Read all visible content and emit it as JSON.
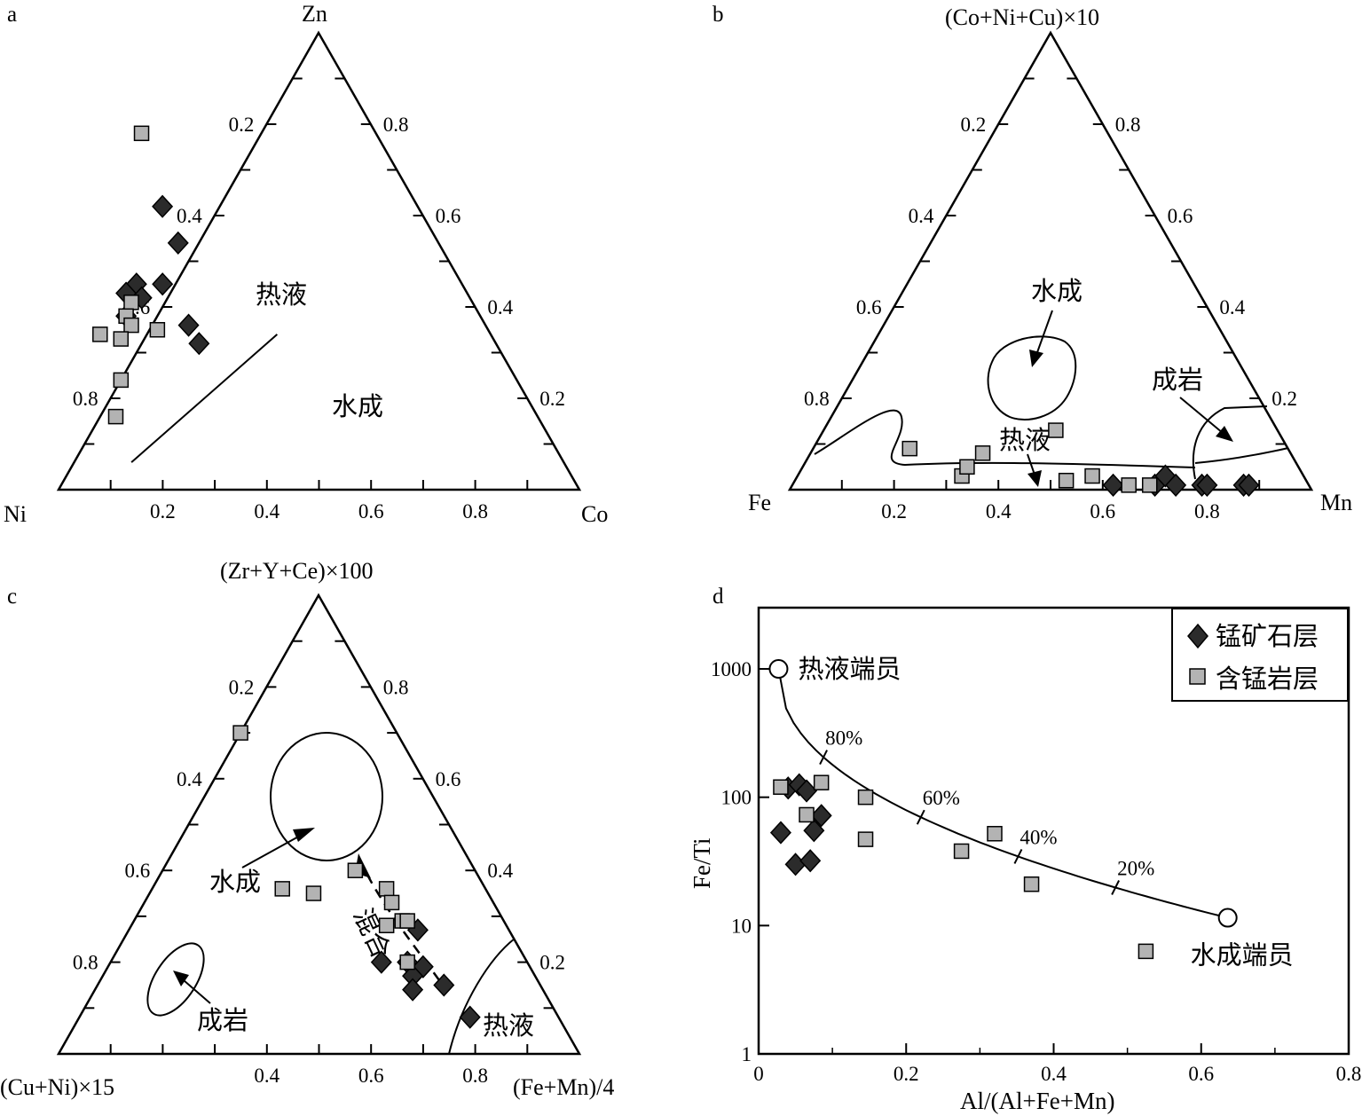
{
  "figure": {
    "panels": [
      {
        "id": "a",
        "label": "a"
      },
      {
        "id": "b",
        "label": "b"
      },
      {
        "id": "c",
        "label": "c"
      },
      {
        "id": "d",
        "label": "d"
      }
    ]
  },
  "colors": {
    "diamond_fill": "#2b2b2b",
    "square_fill": "#b3b3b3",
    "stroke": "#000000",
    "background": "#ffffff"
  },
  "chart_data": [
    {
      "id": "a",
      "type": "scatter",
      "subtype": "ternary",
      "vertex_labels": {
        "top": "Zn",
        "left": "Ni",
        "right": "Co"
      },
      "tick_values": [
        "0.2",
        "0.4",
        "0.6",
        "0.8"
      ],
      "left_edge_ticks": [
        "0.2",
        "0.4",
        "0.6",
        "0.8"
      ],
      "right_edge_ticks": [
        "0.8",
        "0.6",
        "0.4",
        "0.2"
      ],
      "bottom_edge_ticks": [
        "0.2",
        "0.4",
        "0.6",
        "0.8"
      ],
      "region_labels": [
        "热液",
        "水成"
      ],
      "boundary": [
        [
          0.14,
          0.06
        ],
        [
          0.42,
          0.34
        ]
      ],
      "series": [
        {
          "marker": "diamond",
          "points": [
            [
              0.2,
              0.62
            ],
            [
              0.23,
              0.54
            ],
            [
              0.2,
              0.45
            ],
            [
              0.15,
              0.45
            ],
            [
              0.16,
              0.42
            ],
            [
              0.13,
              0.43
            ],
            [
              0.13,
              0.38
            ],
            [
              0.27,
              0.32
            ],
            [
              0.25,
              0.36
            ]
          ]
        },
        {
          "marker": "square",
          "points": [
            [
              0.16,
              0.78
            ],
            [
              0.19,
              0.35
            ],
            [
              0.14,
              0.41
            ],
            [
              0.13,
              0.38
            ],
            [
              0.14,
              0.36
            ],
            [
              0.12,
              0.33
            ],
            [
              0.08,
              0.34
            ],
            [
              0.12,
              0.24
            ],
            [
              0.11,
              0.16
            ]
          ]
        }
      ]
    },
    {
      "id": "b",
      "type": "scatter",
      "subtype": "ternary",
      "vertex_labels": {
        "top": "(Co+Ni+Cu)×10",
        "left": "Fe",
        "right": "Mn"
      },
      "tick_values": [
        "0.2",
        "0.4",
        "0.6",
        "0.8"
      ],
      "left_edge_ticks": [
        "0.2",
        "0.4",
        "0.6",
        "0.8"
      ],
      "right_edge_ticks": [
        "0.8",
        "0.6",
        "0.4",
        "0.2"
      ],
      "bottom_edge_ticks": [
        "0.2",
        "0.4",
        "0.6",
        "0.8"
      ],
      "region_labels": [
        "水成",
        "成岩",
        "热液"
      ],
      "series": [
        {
          "marker": "diamond",
          "points": [
            [
              0.62,
              0.01
            ],
            [
              0.7,
              0.01
            ],
            [
              0.72,
              0.03
            ],
            [
              0.74,
              0.01
            ],
            [
              0.79,
              0.01
            ],
            [
              0.8,
              0.01
            ],
            [
              0.87,
              0.01
            ],
            [
              0.88,
              0.01
            ]
          ]
        },
        {
          "marker": "square",
          "points": [
            [
              0.23,
              0.09
            ],
            [
              0.33,
              0.03
            ],
            [
              0.34,
              0.05
            ],
            [
              0.37,
              0.08
            ],
            [
              0.51,
              0.13
            ],
            [
              0.53,
              0.02
            ],
            [
              0.58,
              0.03
            ],
            [
              0.65,
              0.01
            ],
            [
              0.69,
              0.01
            ]
          ]
        }
      ]
    },
    {
      "id": "c",
      "type": "scatter",
      "subtype": "ternary",
      "vertex_labels": {
        "top": "(Zr+Y+Ce)×100",
        "left": "(Cu+Ni)×15",
        "right": "(Fe+Mn)/4"
      },
      "tick_values": [
        "0.2",
        "0.4",
        "0.6",
        "0.8"
      ],
      "left_edge_ticks": [
        "0.2",
        "0.4",
        "0.6",
        "0.8"
      ],
      "right_edge_ticks": [
        "0.8",
        "0.6",
        "0.4",
        "0.2"
      ],
      "bottom_edge_ticks": [
        "0.4",
        "0.6",
        "0.8"
      ],
      "region_labels": [
        "水成",
        "混合",
        "成岩",
        "热液"
      ],
      "series": [
        {
          "marker": "diamond",
          "points": [
            [
              0.69,
              0.27
            ],
            [
              0.62,
              0.2
            ],
            [
              0.67,
              0.2
            ],
            [
              0.7,
              0.19
            ],
            [
              0.68,
              0.17
            ],
            [
              0.68,
              0.14
            ],
            [
              0.74,
              0.15
            ],
            [
              0.79,
              0.08
            ]
          ]
        },
        {
          "marker": "square",
          "points": [
            [
              0.35,
              0.7
            ],
            [
              0.57,
              0.4
            ],
            [
              0.63,
              0.36
            ],
            [
              0.64,
              0.33
            ],
            [
              0.66,
              0.29
            ],
            [
              0.43,
              0.36
            ],
            [
              0.49,
              0.35
            ],
            [
              0.63,
              0.28
            ],
            [
              0.67,
              0.29
            ],
            [
              0.67,
              0.2
            ]
          ]
        }
      ]
    },
    {
      "id": "d",
      "type": "scatter",
      "xlabel": "Al/(Al+Fe+Mn)",
      "ylabel": "Fe/Ti",
      "xlim": [
        0,
        0.8
      ],
      "ylim": [
        1,
        3000
      ],
      "yscale": "log",
      "x_ticks": [
        "0",
        "0.2",
        "0.4",
        "0.6",
        "0.8"
      ],
      "y_ticks": [
        "1",
        "10",
        "100",
        "1000"
      ],
      "legend": {
        "position": "top-right",
        "entries": [
          {
            "marker": "diamond",
            "label": "锰矿石层"
          },
          {
            "marker": "square",
            "label": "含锰岩层"
          }
        ]
      },
      "endmembers": [
        {
          "label": "热液端员",
          "x": 0.027,
          "y": 1000
        },
        {
          "label": "水成端员",
          "x": 0.636,
          "y": 11.5
        }
      ],
      "mixing_curve_labels": [
        "80%",
        "60%",
        "40%",
        "20%"
      ],
      "series": [
        {
          "name": "锰矿石层",
          "marker": "diamond",
          "points": [
            [
              0.04,
              118
            ],
            [
              0.055,
              125
            ],
            [
              0.065,
              112
            ],
            [
              0.085,
              72
            ],
            [
              0.075,
              55
            ],
            [
              0.03,
              53
            ],
            [
              0.05,
              30
            ],
            [
              0.07,
              32
            ]
          ]
        },
        {
          "name": "含锰岩层",
          "marker": "square",
          "points": [
            [
              0.03,
              120
            ],
            [
              0.085,
              130
            ],
            [
              0.145,
              100
            ],
            [
              0.065,
              73
            ],
            [
              0.145,
              47
            ],
            [
              0.275,
              38
            ],
            [
              0.32,
              52
            ],
            [
              0.37,
              21
            ],
            [
              0.525,
              6.3
            ]
          ]
        }
      ]
    }
  ]
}
